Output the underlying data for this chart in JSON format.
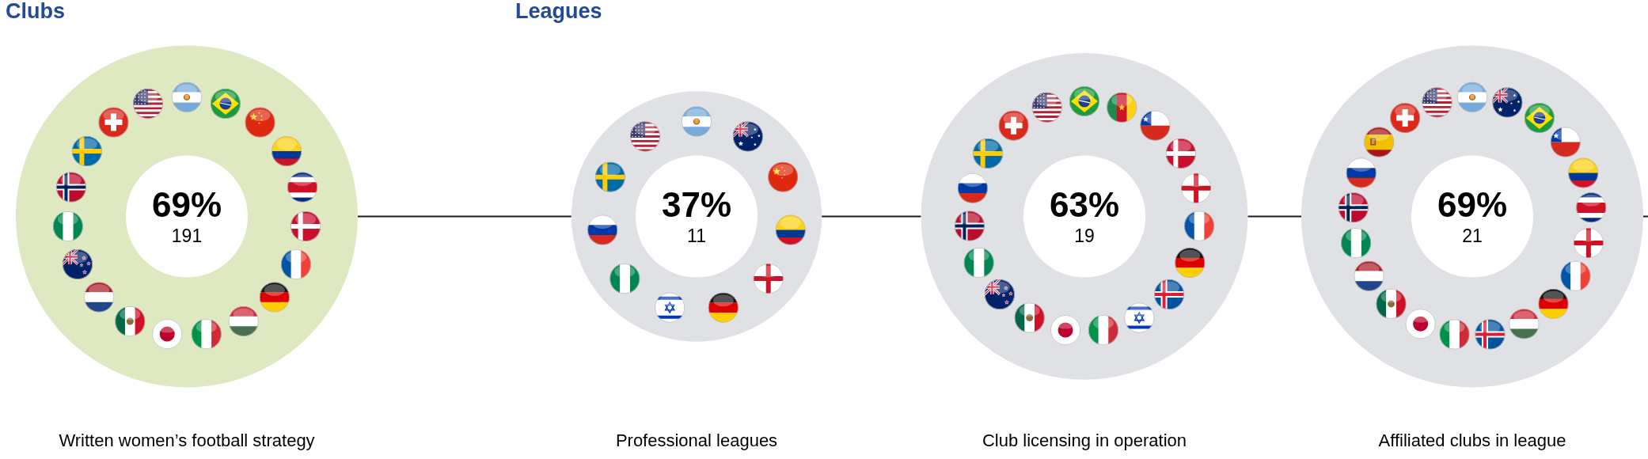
{
  "chart_data": [
    {
      "type": "other",
      "title": "Clubs",
      "categories": [
        "Written women’s football strategy"
      ],
      "data_labels": true,
      "series": [
        {
          "values": [
            69
          ],
          "value_labels": [
            "69%"
          ],
          "colors": [
            "#dfe9c1"
          ]
        },
        {
          "values": [
            191
          ]
        }
      ]
    },
    {
      "type": "other",
      "title": "Leagues",
      "categories": [
        "Professional leagues",
        "Club licensing in operation",
        "Affiliated clubs in league"
      ],
      "data_labels": true,
      "series": [
        {
          "values": [
            37,
            63,
            69
          ],
          "value_labels": [
            "37%",
            "63%",
            "69%"
          ],
          "colors": [
            "#dfe1e4",
            "#dfe1e4",
            "#dfe1e4"
          ]
        },
        {
          "values": [
            11,
            19,
            21
          ]
        }
      ]
    }
  ]
}
